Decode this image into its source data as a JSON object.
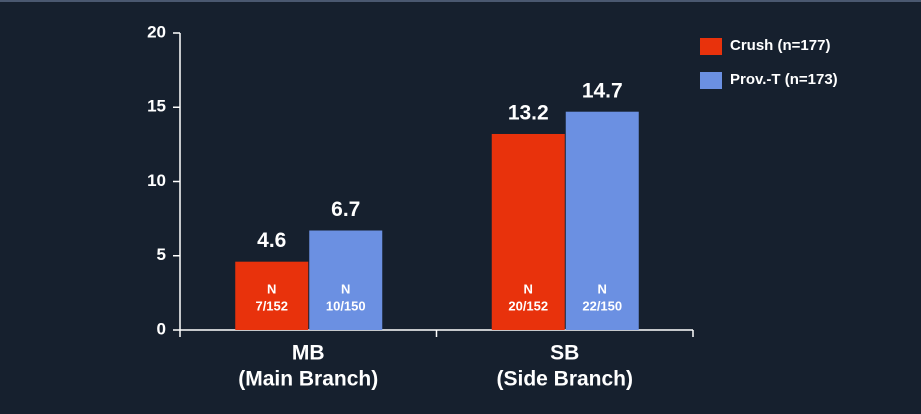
{
  "chart_data": {
    "type": "bar",
    "categories": [
      [
        "MB",
        "(Main Branch)"
      ],
      [
        "SB",
        "(Side Branch)"
      ]
    ],
    "series": [
      {
        "name": "Crush (n=177)",
        "color": "#e8320c",
        "values": [
          4.6,
          13.2
        ],
        "notes": [
          [
            "N",
            "7/152"
          ],
          [
            "N",
            "20/152"
          ]
        ]
      },
      {
        "name": "Prov.-T (n=173)",
        "color": "#6b90e2",
        "values": [
          6.7,
          14.7
        ],
        "notes": [
          [
            "N",
            "10/150"
          ],
          [
            "N",
            "22/150"
          ]
        ]
      }
    ],
    "ylim": [
      0,
      20
    ],
    "yticks": [
      0,
      5,
      10,
      15,
      20
    ]
  }
}
